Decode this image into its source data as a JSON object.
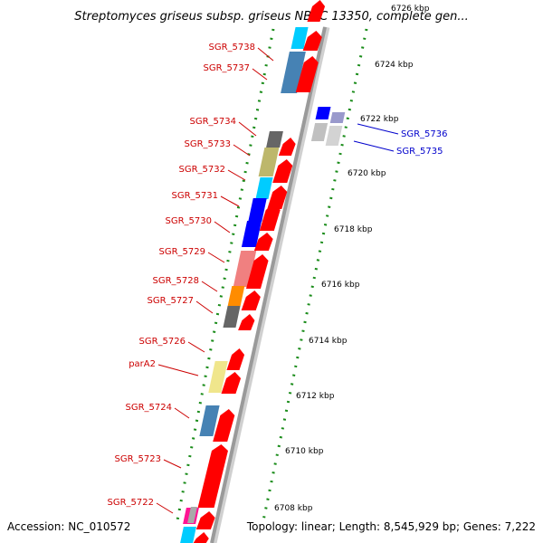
{
  "title": "Streptomyces griseus subsp. griseus NBRC 13350, complete gen...",
  "footer": {
    "accession": "Accession: NC_010572",
    "topology": "Topology: linear; Length: 8,545,929 bp; Genes: 7,222"
  },
  "colors": {
    "left_label": "#cc0000",
    "right_label": "#0000cc",
    "ruler_dot": "#1a8c1a",
    "backbone": "#9a9a9a",
    "forward_arrow": "#ff0000"
  },
  "ticks": [
    "6726 kbp",
    "6724 kbp",
    "6722 kbp",
    "6720 kbp",
    "6718 kbp",
    "6716 kbp",
    "6714 kbp",
    "6712 kbp",
    "6710 kbp",
    "6708 kbp"
  ],
  "left_genes": [
    {
      "label": "SGR_5738",
      "color": "#00ccff"
    },
    {
      "label": "SGR_5737",
      "color": "#4682b4"
    },
    {
      "label": "SGR_5734",
      "color": "#666666"
    },
    {
      "label": "SGR_5733",
      "color": "#bdb76b"
    },
    {
      "label": "SGR_5732",
      "color": "#00ccff"
    },
    {
      "label": "SGR_5731",
      "color": "#0000ff"
    },
    {
      "label": "SGR_5730",
      "color": "#0000ff"
    },
    {
      "label": "SGR_5729",
      "color": "#f08080"
    },
    {
      "label": "SGR_5728",
      "color": "#ff8c00"
    },
    {
      "label": "SGR_5727",
      "color": "#666666"
    },
    {
      "label": "SGR_5726",
      "color": "#f0e68c"
    },
    {
      "label": "parA2",
      "color": "#f0e68c"
    },
    {
      "label": "SGR_5724",
      "color": "#4682b4"
    },
    {
      "label": "SGR_5723",
      "color": "#ff0000"
    },
    {
      "label": "SGR_5722",
      "color": "#ff1493"
    }
  ],
  "right_genes": [
    {
      "label": "SGR_5736",
      "color": "#0000ff"
    },
    {
      "label": "SGR_5735",
      "color": "#c0c0c0"
    }
  ]
}
